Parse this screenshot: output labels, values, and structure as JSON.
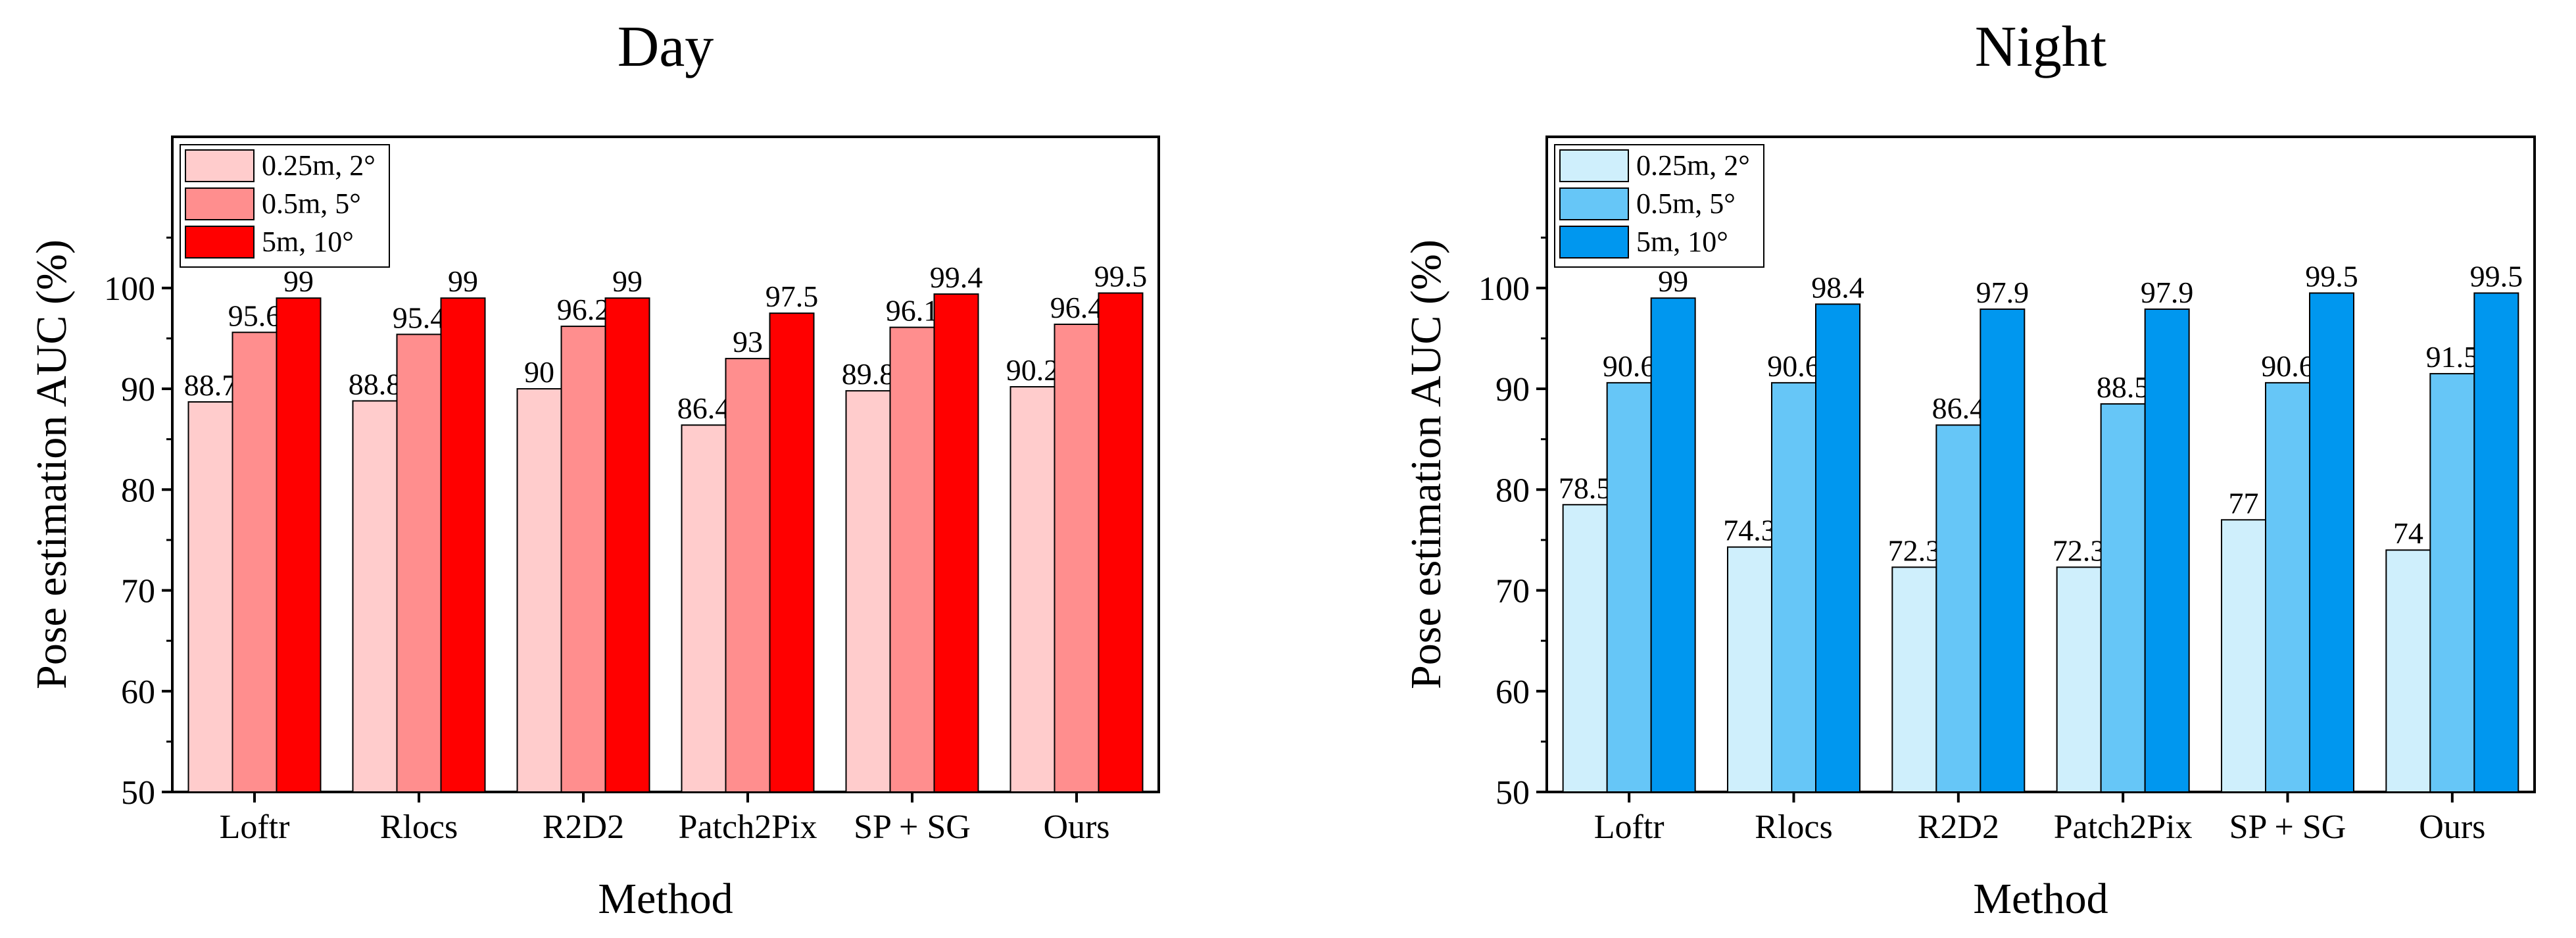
{
  "chart_data": [
    {
      "type": "bar",
      "title": "Day",
      "xlabel": "Method",
      "ylabel": "Pose estimation AUC (%)",
      "ylim": [
        50,
        115
      ],
      "yticks": [
        50,
        60,
        70,
        80,
        90,
        100
      ],
      "categories": [
        "Loftr",
        "Rlocs",
        "R2D2",
        "Patch2Pix",
        "SP + SG",
        "Ours"
      ],
      "legend_position": "top-left",
      "series": [
        {
          "name": "0.25m, 2°",
          "color": "#ffcccc",
          "values": [
            88.7,
            88.8,
            90,
            86.4,
            89.8,
            90.2
          ],
          "labels": [
            "88.7",
            "88.8",
            "90",
            "86.4",
            "89.8",
            "90.2"
          ]
        },
        {
          "name": "0.5m, 5°",
          "color": "#ff8e8e",
          "values": [
            95.6,
            95.4,
            96.2,
            93,
            96.1,
            96.4
          ],
          "labels": [
            "95.6",
            "95.4",
            "96.2",
            "93",
            "96.1",
            "96.4"
          ]
        },
        {
          "name": "5m, 10°",
          "color": "#ff0000",
          "values": [
            99,
            99,
            99,
            97.5,
            99.4,
            99.5
          ],
          "labels": [
            "99",
            "99",
            "99",
            "97.5",
            "99.4",
            "99.5"
          ]
        }
      ]
    },
    {
      "type": "bar",
      "title": "Night",
      "xlabel": "Method",
      "ylabel": "Pose estimation AUC (%)",
      "ylim": [
        50,
        115
      ],
      "yticks": [
        50,
        60,
        70,
        80,
        90,
        100
      ],
      "categories": [
        "Loftr",
        "Rlocs",
        "R2D2",
        "Patch2Pix",
        "SP + SG",
        "Ours"
      ],
      "legend_position": "top-left",
      "series": [
        {
          "name": "0.25m, 2°",
          "color": "#cfeffc",
          "values": [
            78.5,
            74.3,
            72.3,
            72.3,
            77,
            74
          ],
          "labels": [
            "78.5",
            "74.3",
            "72.3",
            "72.3",
            "77",
            "74"
          ]
        },
        {
          "name": "0.5m, 5°",
          "color": "#66c6f7",
          "values": [
            90.6,
            90.6,
            86.4,
            88.5,
            90.6,
            91.5
          ],
          "labels": [
            "90.6",
            "90.6",
            "86.4",
            "88.5",
            "90.6",
            "91.5"
          ]
        },
        {
          "name": "5m, 10°",
          "color": "#0097ef",
          "values": [
            99,
            98.4,
            97.9,
            97.9,
            99.5,
            99.5
          ],
          "labels": [
            "99",
            "98.4",
            "97.9",
            "97.9",
            "99.5",
            "99.5"
          ]
        }
      ]
    }
  ]
}
